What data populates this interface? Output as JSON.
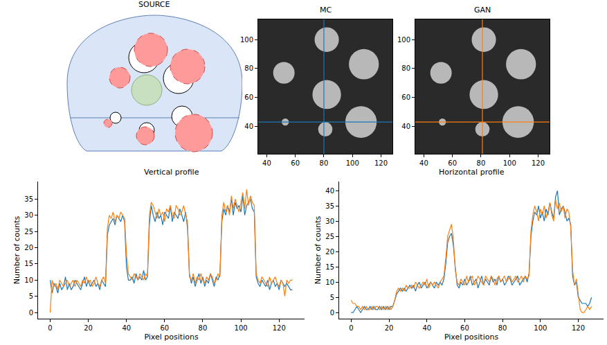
{
  "chart_data": [
    {
      "type": "diagram",
      "title": "SOURCE"
    },
    {
      "type": "image",
      "title": "MC",
      "xlim": [
        34,
        128
      ],
      "ylim": [
        21,
        114
      ],
      "xticks": [
        40,
        60,
        80,
        100,
        120
      ],
      "yticks": [
        40,
        60,
        80,
        100
      ],
      "discs": [
        {
          "x": 53,
          "y": 43,
          "r": 2.5
        },
        {
          "x": 81,
          "y": 38,
          "r": 5
        },
        {
          "x": 106,
          "y": 43,
          "r": 11
        },
        {
          "x": 82,
          "y": 62,
          "r": 10
        },
        {
          "x": 52,
          "y": 77,
          "r": 7.5
        },
        {
          "x": 82,
          "y": 100,
          "r": 8.5
        },
        {
          "x": 108,
          "y": 83,
          "r": 10.5
        }
      ],
      "crosshair": {
        "x": 80,
        "y": 43
      },
      "color": "#1f77b4"
    },
    {
      "type": "image",
      "title": "GAN",
      "xlim": [
        34,
        128
      ],
      "ylim": [
        21,
        114
      ],
      "xticks": [
        40,
        60,
        80,
        100,
        120
      ],
      "yticks": [
        40,
        60,
        80,
        100
      ],
      "discs": [
        {
          "x": 53,
          "y": 43,
          "r": 2.5
        },
        {
          "x": 81,
          "y": 38,
          "r": 5
        },
        {
          "x": 106,
          "y": 43,
          "r": 11
        },
        {
          "x": 82,
          "y": 62,
          "r": 10
        },
        {
          "x": 52,
          "y": 77,
          "r": 7.5
        },
        {
          "x": 82,
          "y": 100,
          "r": 8.5
        },
        {
          "x": 108,
          "y": 83,
          "r": 10.5
        }
      ],
      "crosshair": {
        "x": 81,
        "y": 43
      },
      "color": "#ff7f0e"
    },
    {
      "type": "line",
      "title": "Vertical profile",
      "xlabel": "Pixel positions",
      "ylabel": "Number of counts",
      "xlim": [
        -6.35,
        133.35
      ],
      "ylim": [
        -1.9,
        40.4
      ],
      "xticks": [
        0,
        20,
        40,
        60,
        80,
        100,
        120
      ],
      "yticks": [
        0,
        5,
        10,
        15,
        20,
        25,
        30,
        35
      ],
      "x": [
        0,
        1,
        2,
        3,
        4,
        5,
        6,
        7,
        8,
        9,
        10,
        11,
        12,
        13,
        14,
        15,
        16,
        17,
        18,
        19,
        20,
        21,
        22,
        23,
        24,
        25,
        26,
        27,
        28,
        29,
        30,
        31,
        32,
        33,
        34,
        35,
        36,
        37,
        38,
        39,
        40,
        41,
        42,
        43,
        44,
        45,
        46,
        47,
        48,
        49,
        50,
        51,
        52,
        53,
        54,
        55,
        56,
        57,
        58,
        59,
        60,
        61,
        62,
        63,
        64,
        65,
        66,
        67,
        68,
        69,
        70,
        71,
        72,
        73,
        74,
        75,
        76,
        77,
        78,
        79,
        80,
        81,
        82,
        83,
        84,
        85,
        86,
        87,
        88,
        89,
        90,
        91,
        92,
        93,
        94,
        95,
        96,
        97,
        98,
        99,
        100,
        101,
        102,
        103,
        104,
        105,
        106,
        107,
        108,
        109,
        110,
        111,
        112,
        113,
        114,
        115,
        116,
        117,
        118,
        119,
        120,
        121,
        122,
        123,
        124,
        125,
        126,
        127
      ],
      "series": [
        {
          "color": "#1f77b4",
          "values": [
            10,
            6,
            9,
            8,
            6,
            9,
            7,
            8,
            11,
            7,
            9,
            7,
            8,
            10,
            9,
            8,
            7,
            9,
            11,
            8,
            10,
            8,
            9,
            10,
            8,
            9,
            7,
            10,
            9,
            8,
            24,
            27,
            28,
            29,
            27,
            30,
            29,
            28,
            30,
            28,
            14,
            10,
            10,
            11,
            9,
            12,
            10,
            11,
            10,
            13,
            10,
            11,
            27,
            33,
            30,
            28,
            31,
            29,
            30,
            27,
            31,
            30,
            29,
            33,
            28,
            31,
            30,
            29,
            32,
            30,
            28,
            31,
            26,
            12,
            9,
            11,
            8,
            10,
            12,
            9,
            11,
            8,
            10,
            9,
            12,
            10,
            8,
            11,
            10,
            12,
            28,
            32,
            30,
            33,
            31,
            35,
            30,
            34,
            32,
            33,
            31,
            36,
            30,
            33,
            34,
            35,
            32,
            31,
            11,
            9,
            8,
            10,
            9,
            8,
            10,
            7,
            9,
            10,
            8,
            9,
            7,
            10,
            9,
            8,
            9,
            8,
            7,
            7
          ]
        },
        {
          "color": "#ff7f0e",
          "values": [
            0,
            10,
            8,
            9,
            7,
            10,
            9,
            8,
            9,
            10,
            8,
            9,
            10,
            8,
            10,
            9,
            8,
            10,
            9,
            11,
            9,
            10,
            8,
            9,
            11,
            9,
            8,
            10,
            11,
            9,
            26,
            30,
            29,
            31,
            28,
            30,
            29,
            31,
            30,
            29,
            18,
            12,
            11,
            10,
            12,
            11,
            10,
            12,
            11,
            10,
            12,
            11,
            30,
            34,
            33,
            31,
            29,
            32,
            30,
            31,
            28,
            32,
            31,
            33,
            30,
            29,
            33,
            32,
            30,
            31,
            33,
            30,
            28,
            11,
            10,
            12,
            9,
            11,
            10,
            12,
            10,
            9,
            11,
            10,
            12,
            11,
            9,
            10,
            12,
            11,
            30,
            34,
            31,
            33,
            30,
            36,
            32,
            35,
            33,
            31,
            34,
            37,
            32,
            38,
            33,
            36,
            34,
            33,
            12,
            10,
            9,
            11,
            10,
            9,
            8,
            11,
            9,
            10,
            11,
            9,
            8,
            10,
            9,
            5,
            10,
            9,
            10,
            10
          ]
        }
      ]
    },
    {
      "type": "line",
      "title": "Horizontal profile",
      "xlabel": "Pixel positions",
      "ylabel": "Number of counts",
      "xlim": [
        -6.35,
        133.35
      ],
      "ylim": [
        -2,
        43
      ],
      "xticks": [
        0,
        20,
        40,
        60,
        80,
        100,
        120
      ],
      "yticks": [
        0,
        5,
        10,
        15,
        20,
        25,
        30,
        35,
        40
      ],
      "x": [
        0,
        1,
        2,
        3,
        4,
        5,
        6,
        7,
        8,
        9,
        10,
        11,
        12,
        13,
        14,
        15,
        16,
        17,
        18,
        19,
        20,
        21,
        22,
        23,
        24,
        25,
        26,
        27,
        28,
        29,
        30,
        31,
        32,
        33,
        34,
        35,
        36,
        37,
        38,
        39,
        40,
        41,
        42,
        43,
        44,
        45,
        46,
        47,
        48,
        49,
        50,
        51,
        52,
        53,
        54,
        55,
        56,
        57,
        58,
        59,
        60,
        61,
        62,
        63,
        64,
        65,
        66,
        67,
        68,
        69,
        70,
        71,
        72,
        73,
        74,
        75,
        76,
        77,
        78,
        79,
        80,
        81,
        82,
        83,
        84,
        85,
        86,
        87,
        88,
        89,
        90,
        91,
        92,
        93,
        94,
        95,
        96,
        97,
        98,
        99,
        100,
        101,
        102,
        103,
        104,
        105,
        106,
        107,
        108,
        109,
        110,
        111,
        112,
        113,
        114,
        115,
        116,
        117,
        118,
        119,
        120,
        121,
        122,
        123,
        124,
        125,
        126,
        127
      ],
      "series": [
        {
          "color": "#1f77b4",
          "values": [
            0,
            0,
            1,
            2,
            1,
            0,
            1,
            2,
            1,
            1,
            2,
            1,
            2,
            1,
            1,
            2,
            1,
            2,
            1,
            2,
            1,
            2,
            2,
            4,
            6,
            7,
            8,
            7,
            8,
            7,
            8,
            9,
            8,
            9,
            7,
            9,
            10,
            8,
            9,
            10,
            8,
            9,
            10,
            9,
            8,
            10,
            9,
            10,
            9,
            11,
            16,
            23,
            25,
            26,
            22,
            15,
            9,
            8,
            10,
            9,
            11,
            9,
            10,
            12,
            9,
            10,
            11,
            8,
            10,
            12,
            9,
            11,
            10,
            9,
            12,
            10,
            11,
            9,
            12,
            10,
            11,
            9,
            10,
            12,
            11,
            9,
            10,
            11,
            12,
            9,
            10,
            11,
            12,
            10,
            13,
            25,
            30,
            33,
            32,
            35,
            31,
            33,
            30,
            34,
            32,
            36,
            33,
            31,
            38,
            40,
            32,
            34,
            35,
            33,
            30,
            31,
            29,
            12,
            9,
            10,
            5,
            4,
            3,
            3,
            3,
            2,
            3,
            5
          ]
        },
        {
          "color": "#ff7f0e",
          "values": [
            4,
            3,
            3,
            2,
            2,
            1,
            2,
            1,
            2,
            1,
            1,
            2,
            1,
            2,
            2,
            1,
            2,
            1,
            2,
            1,
            2,
            1,
            2,
            4,
            7,
            8,
            7,
            8,
            7,
            9,
            8,
            8,
            9,
            8,
            10,
            9,
            8,
            9,
            10,
            9,
            11,
            8,
            10,
            9,
            10,
            9,
            8,
            10,
            11,
            12,
            18,
            25,
            27,
            29,
            24,
            14,
            10,
            9,
            11,
            10,
            9,
            12,
            10,
            11,
            12,
            9,
            10,
            12,
            11,
            10,
            9,
            12,
            11,
            10,
            12,
            11,
            9,
            11,
            12,
            10,
            11,
            12,
            10,
            11,
            12,
            10,
            11,
            12,
            10,
            11,
            12,
            10,
            12,
            11,
            12,
            27,
            32,
            35,
            33,
            30,
            34,
            32,
            35,
            31,
            33,
            36,
            32,
            30,
            37,
            34,
            36,
            33,
            35,
            31,
            34,
            33,
            28,
            14,
            9,
            11,
            6,
            1,
            0,
            0,
            1,
            2,
            1,
            2
          ]
        }
      ]
    }
  ]
}
